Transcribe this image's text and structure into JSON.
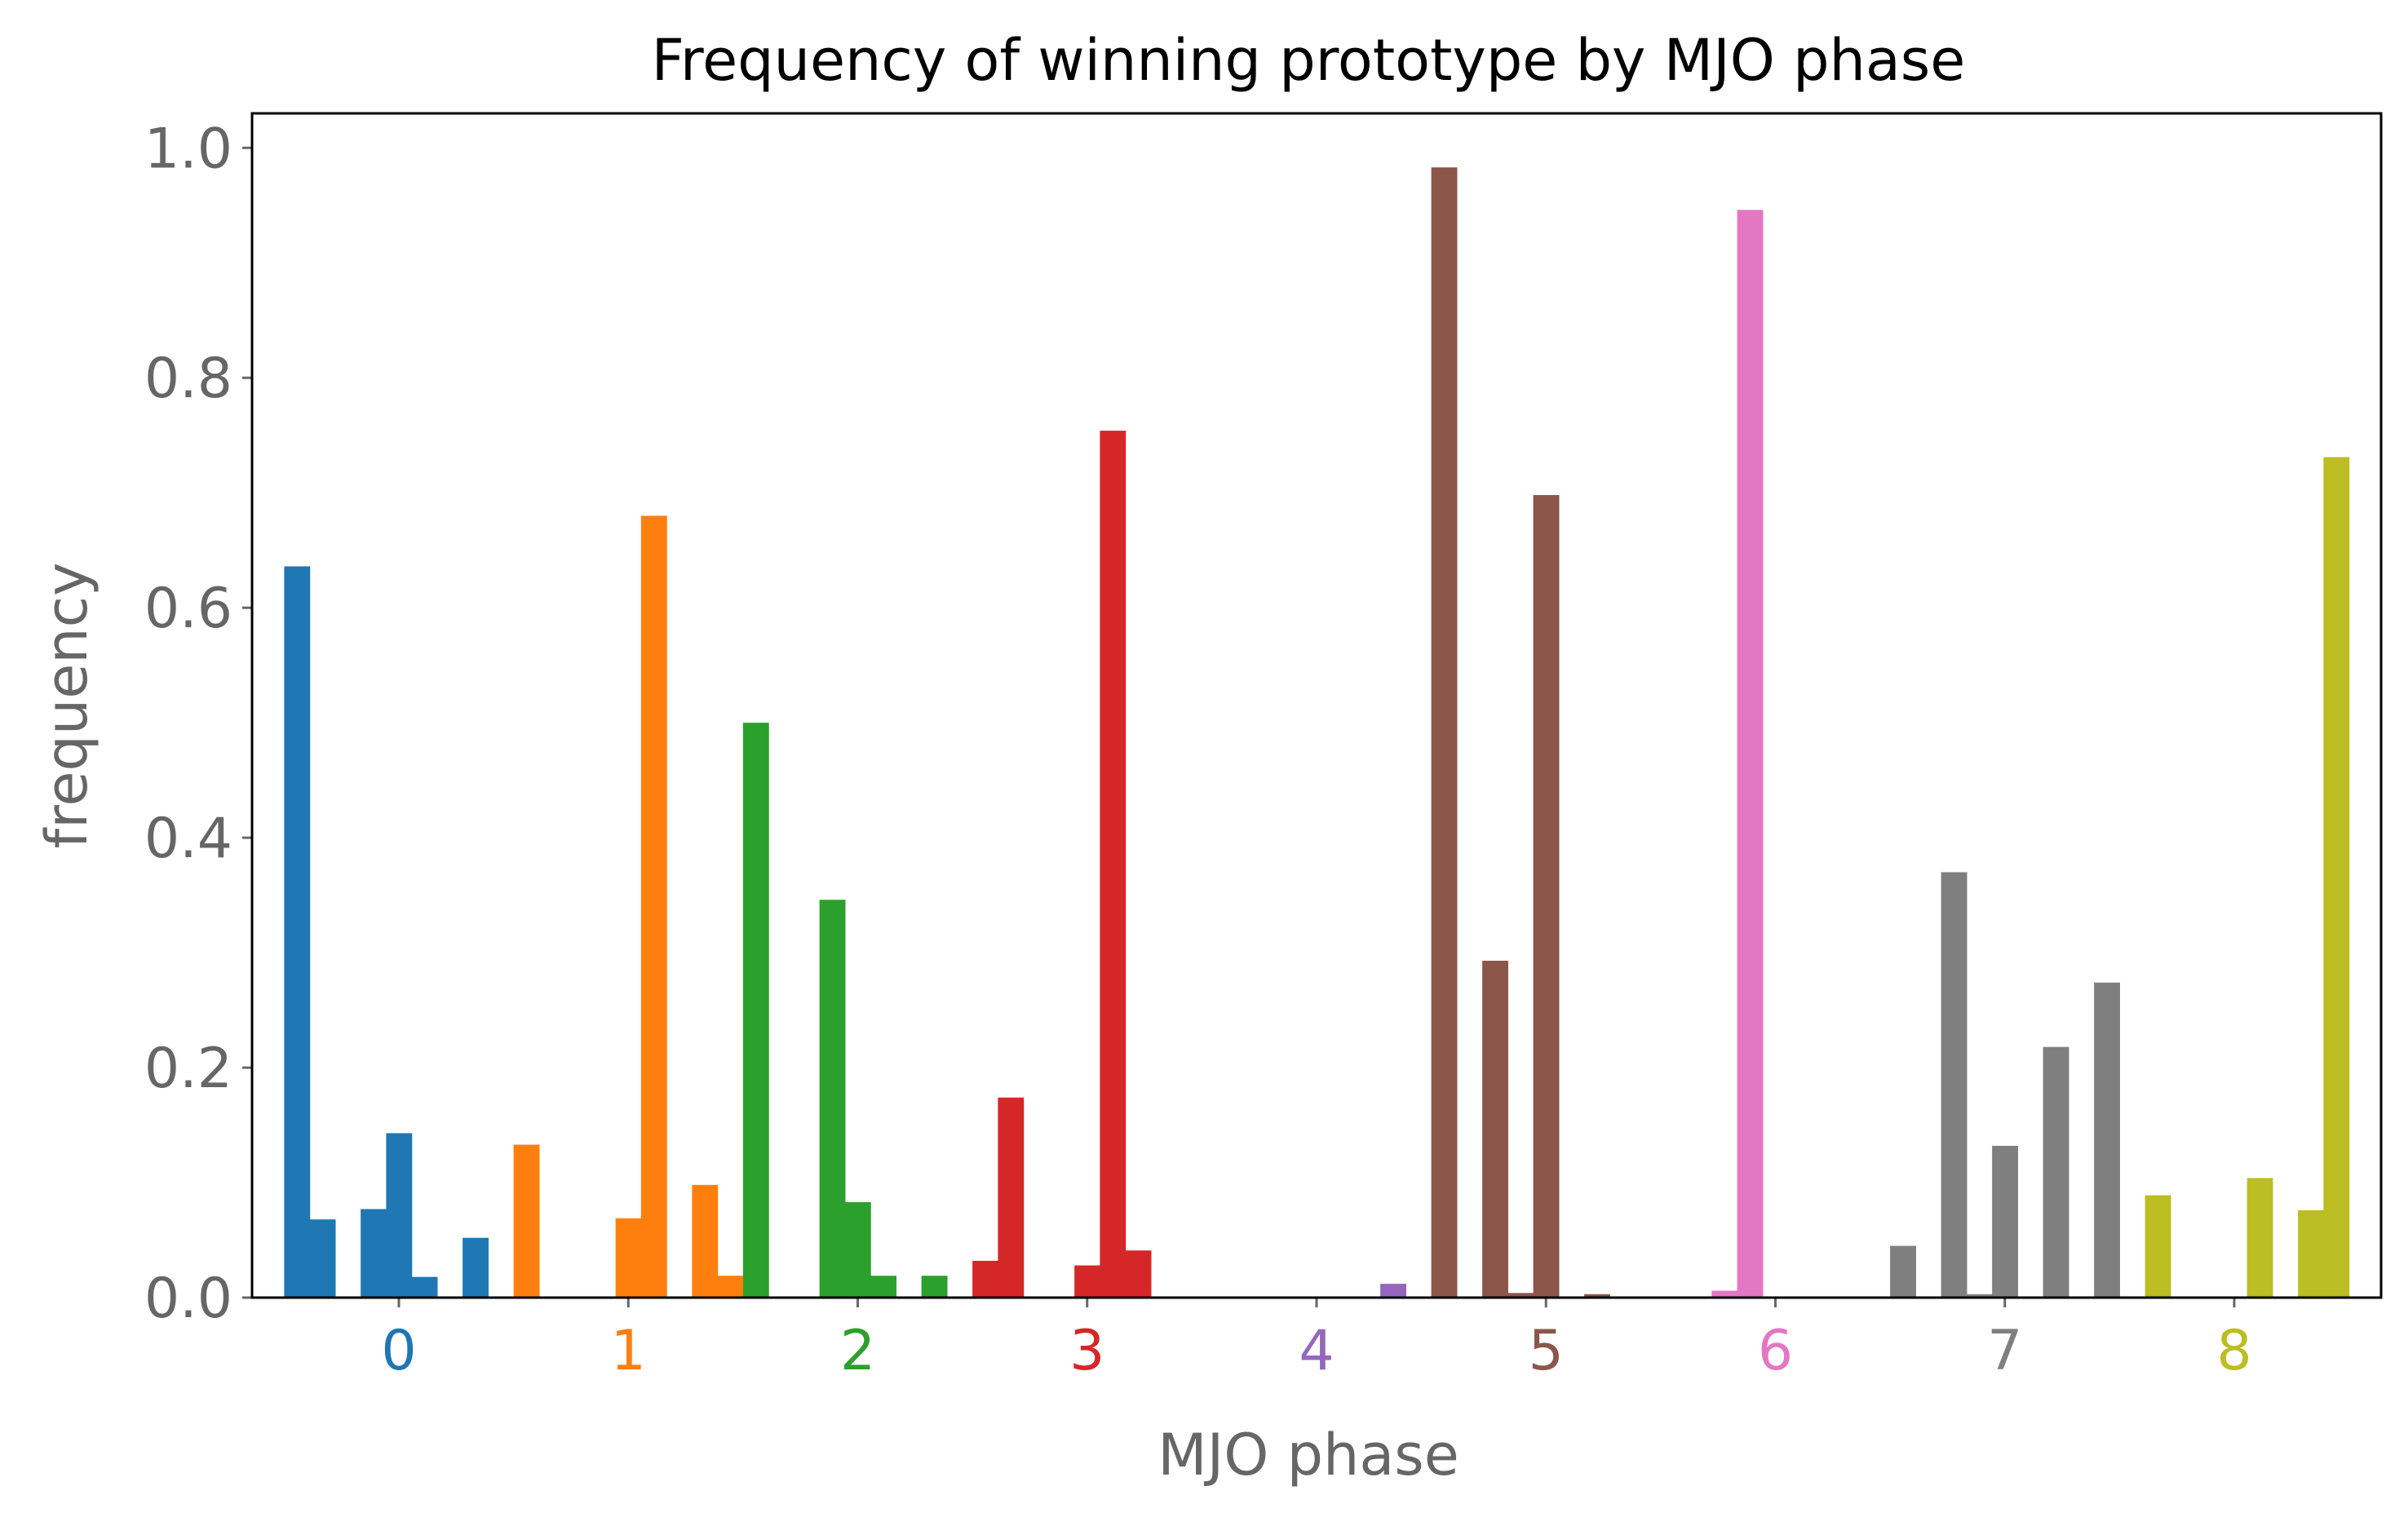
{
  "chart_data": {
    "type": "bar",
    "title": "Frequency of winning prototype by MJO phase",
    "xlabel": "MJO phase",
    "ylabel": "frequency",
    "ylim": [
      0,
      1.03
    ],
    "xlim": [
      -0.64,
      8.64
    ],
    "yticks": [
      "0.0",
      "0.2",
      "0.4",
      "0.6",
      "0.8",
      "1.0"
    ],
    "ytick_values": [
      0,
      0.2,
      0.4,
      0.6,
      0.8,
      1.0
    ],
    "categories": [
      "0",
      "1",
      "2",
      "3",
      "4",
      "5",
      "6",
      "7",
      "8"
    ],
    "grid": false,
    "series": [
      {
        "color": "#1f77b4",
        "values": [
          0.636,
          0.068,
          0.0,
          0.077,
          0.143,
          0.018,
          0.0,
          0.052,
          0.0
        ]
      },
      {
        "color": "#ff7f0e",
        "values": [
          0.133,
          0.0,
          0.0,
          0.0,
          0.069,
          0.68,
          0.0,
          0.098,
          0.019
        ]
      },
      {
        "color": "#2ca02c",
        "values": [
          0.5,
          0.0,
          0.0,
          0.346,
          0.083,
          0.019,
          0.0,
          0.019,
          0.0
        ]
      },
      {
        "color": "#d62728",
        "values": [
          0.032,
          0.174,
          0.0,
          0.0,
          0.028,
          0.754,
          0.041,
          0.0,
          0.0
        ]
      },
      {
        "color": "#9467bd",
        "values": [
          0.0,
          0.0,
          0.0,
          0.0,
          0.0,
          0.0,
          0.0,
          0.012,
          0.0
        ]
      },
      {
        "color": "#8c564b",
        "values": [
          0.983,
          0.0,
          0.293,
          0.004,
          0.698,
          0.0,
          0.003,
          0.0,
          0.0
        ]
      },
      {
        "color": "#e377c2",
        "values": [
          0.0,
          0.0,
          0.006,
          0.946,
          0.0,
          0.0,
          0.0,
          0.0,
          0.0
        ]
      },
      {
        "color": "#7f7f7f",
        "values": [
          0.045,
          0.0,
          0.37,
          0.003,
          0.132,
          0.0,
          0.218,
          0.0,
          0.274
        ]
      },
      {
        "color": "#bcbd22",
        "values": [
          0.0,
          0.089,
          0.0,
          0.0,
          0.0,
          0.104,
          0.0,
          0.076,
          0.731
        ]
      }
    ]
  }
}
